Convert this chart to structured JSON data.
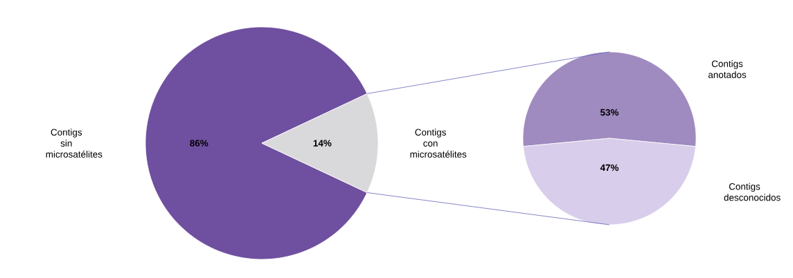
{
  "chart_data": [
    {
      "type": "pie",
      "categories": [
        "Contigs sin microsatélites",
        "Contigs con microsatélites"
      ],
      "values": [
        86,
        14
      ],
      "value_labels": [
        "86%",
        "14%"
      ],
      "colors": [
        "#6f4f9f",
        "#d9d9dc"
      ]
    },
    {
      "type": "pie",
      "categories": [
        "Contigs anotados",
        "Contigs desconocidos"
      ],
      "values": [
        53,
        47
      ],
      "value_labels": [
        "53%",
        "47%"
      ],
      "colors": [
        "#9f8bbf",
        "#d8cdea"
      ]
    }
  ]
}
